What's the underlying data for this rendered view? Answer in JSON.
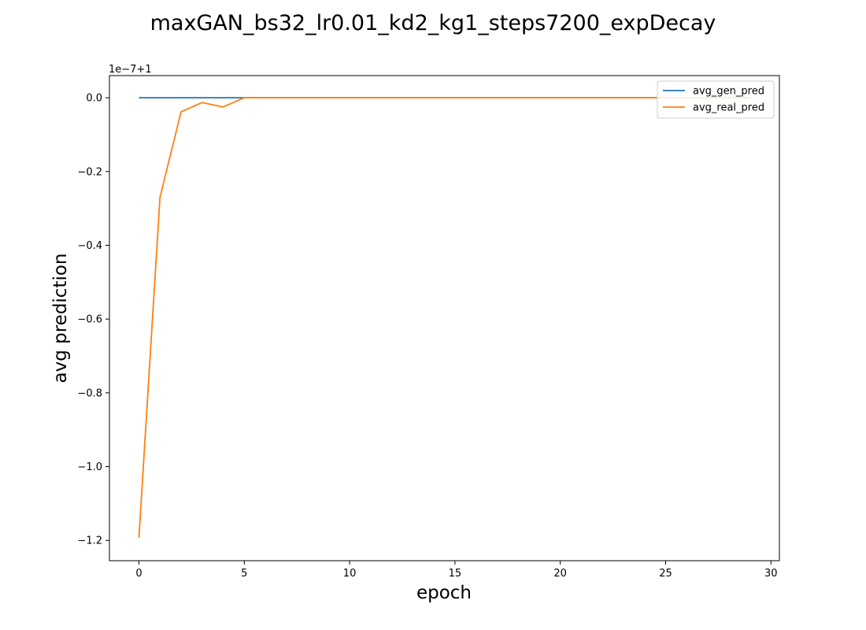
{
  "chart_data": {
    "type": "line",
    "title": "maxGAN_bs32_lr0.01_kd2_kg1_steps7200_expDecay",
    "xlabel": "epoch",
    "ylabel": "avg prediction",
    "y_offset_label": "1e−7+1",
    "xlim": [
      -1.4,
      30.4
    ],
    "ylim": [
      -1.255,
      0.06
    ],
    "xticks": [
      0,
      5,
      10,
      15,
      20,
      25,
      30
    ],
    "yticks": [
      0.0,
      -0.2,
      -0.4,
      -0.6,
      -0.8,
      -1.0,
      -1.2
    ],
    "ytick_labels": [
      "0.0",
      "−0.2",
      "−0.4",
      "−0.6",
      "−0.8",
      "−1.0",
      "−1.2"
    ],
    "grid": false,
    "legend_position": "top-right",
    "x": [
      0,
      1,
      2,
      3,
      4,
      5,
      6,
      7,
      8,
      9,
      10,
      11,
      12,
      13,
      14,
      15,
      16,
      17,
      18,
      19,
      20,
      21,
      22,
      23,
      24,
      25,
      26,
      27,
      28,
      29
    ],
    "series": [
      {
        "name": "avg_gen_pred",
        "color": "#1f77b4",
        "values": [
          0,
          0,
          0,
          0,
          0,
          0,
          0,
          0,
          0,
          0,
          0,
          0,
          0,
          0,
          0,
          0,
          0,
          0,
          0,
          0,
          0,
          0,
          0,
          0,
          0,
          0,
          0,
          0,
          0,
          0
        ]
      },
      {
        "name": "avg_real_pred",
        "color": "#ff7f0e",
        "values": [
          -1.193,
          -0.27,
          -0.038,
          -0.013,
          -0.025,
          0,
          0,
          0,
          0,
          0,
          0,
          0,
          0,
          0,
          0,
          0,
          0,
          0,
          0,
          0,
          0,
          0,
          0,
          0,
          0,
          0,
          0,
          0,
          0,
          0
        ]
      }
    ]
  }
}
